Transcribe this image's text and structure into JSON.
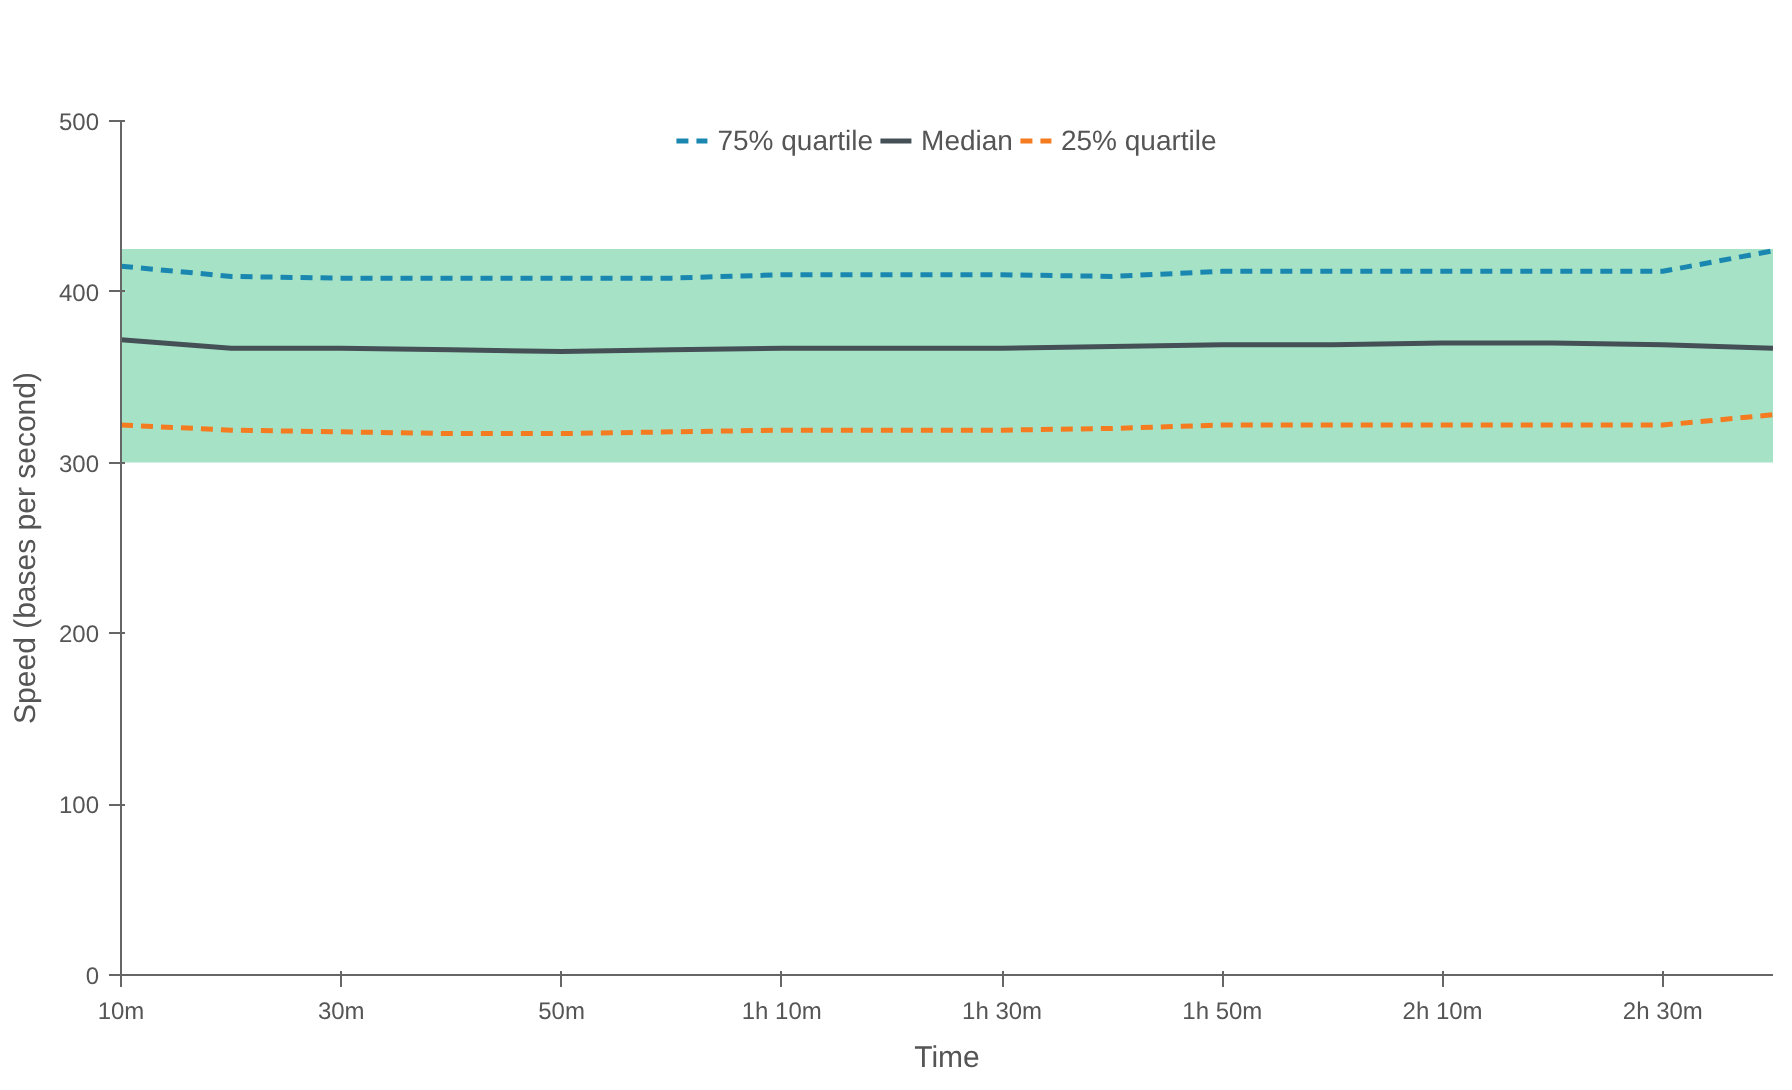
{
  "chart_data": {
    "type": "line",
    "xlabel": "Time",
    "ylabel": "Speed (bases per second)",
    "x": [
      10,
      20,
      30,
      40,
      50,
      60,
      70,
      80,
      90,
      100,
      110,
      120,
      130,
      140,
      150,
      160
    ],
    "series": [
      {
        "name": "75% quartile",
        "color": "#1a87b0",
        "line_style": "dashed",
        "values": [
          415,
          409,
          408,
          408,
          408,
          408,
          410,
          410,
          410,
          409,
          412,
          412,
          412,
          412,
          412,
          424
        ]
      },
      {
        "name": "Median",
        "color": "#455056",
        "line_style": "solid",
        "values": [
          372,
          367,
          367,
          366,
          365,
          366,
          367,
          367,
          367,
          368,
          369,
          369,
          370,
          370,
          369,
          367
        ]
      },
      {
        "name": "25% quartile",
        "color": "#f47b20",
        "line_style": "dashed",
        "values": [
          322,
          319,
          318,
          317,
          317,
          318,
          319,
          319,
          319,
          320,
          322,
          322,
          322,
          322,
          322,
          328
        ]
      }
    ],
    "bands": [
      {
        "axis": "y",
        "from": 300,
        "to": 425,
        "color": "#a6e3c6"
      }
    ],
    "xlim": [
      10,
      160
    ],
    "ylim": [
      0,
      500
    ],
    "xticks": [
      {
        "value": 10,
        "label": "10m"
      },
      {
        "value": 30,
        "label": "30m"
      },
      {
        "value": 50,
        "label": "50m"
      },
      {
        "value": 70,
        "label": "1h 10m"
      },
      {
        "value": 90,
        "label": "1h 30m"
      },
      {
        "value": 110,
        "label": "1h 50m"
      },
      {
        "value": 130,
        "label": "2h 10m"
      },
      {
        "value": 150,
        "label": "2h 30m"
      }
    ],
    "yticks": [
      0,
      100,
      200,
      300,
      400,
      500
    ],
    "grid": false,
    "legend": "top",
    "marker": "none"
  }
}
